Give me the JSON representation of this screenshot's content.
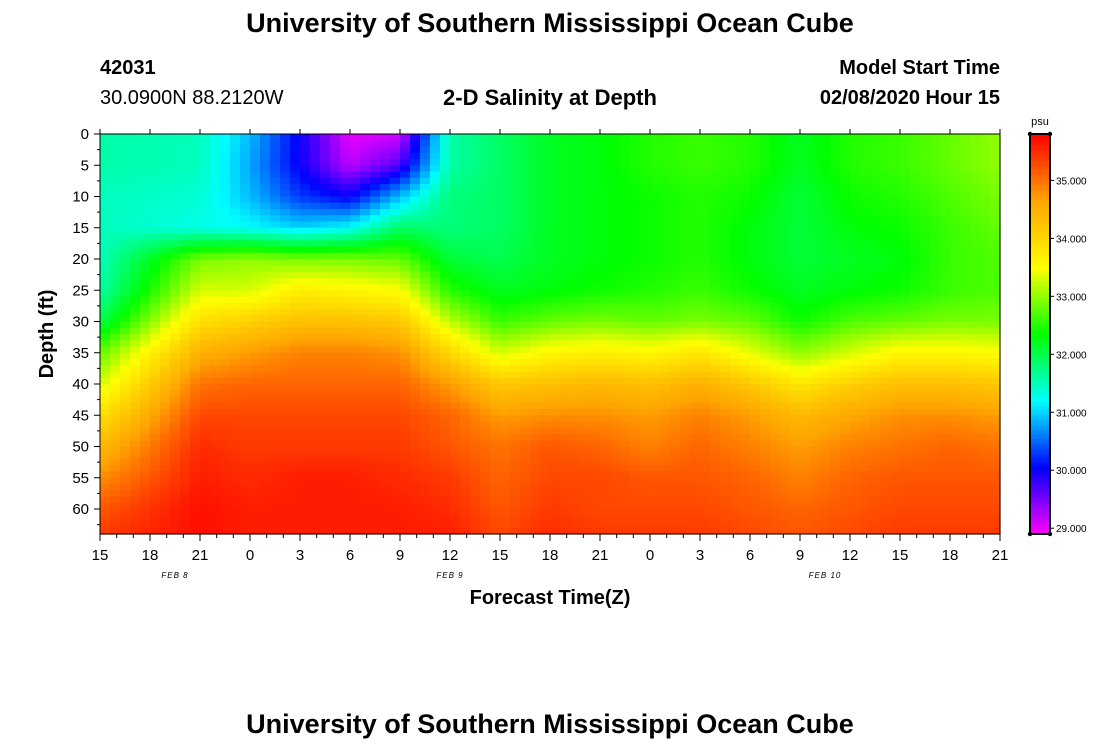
{
  "page": {
    "title_top": "University of Southern Mississippi Ocean Cube",
    "title_bottom": "University of Southern Mississippi Ocean Cube",
    "station_id": "42031",
    "station_coords": "30.0900N 88.2120W",
    "plot_title": "2-D Salinity at Depth",
    "model_label": "Model Start Time",
    "model_time": "02/08/2020 Hour 15"
  },
  "chart_data": {
    "type": "heatmap",
    "title": "2-D Salinity at Depth",
    "xlabel": "Forecast Time(Z)",
    "ylabel": "Depth (ft)",
    "xlim": [
      0,
      54
    ],
    "ylim": [
      0,
      64
    ],
    "x_ticks": [
      {
        "h": 0,
        "label": "15"
      },
      {
        "h": 3,
        "label": "18"
      },
      {
        "h": 6,
        "label": "21"
      },
      {
        "h": 9,
        "label": "0"
      },
      {
        "h": 12,
        "label": "3"
      },
      {
        "h": 15,
        "label": "6"
      },
      {
        "h": 18,
        "label": "9"
      },
      {
        "h": 21,
        "label": "12"
      },
      {
        "h": 24,
        "label": "15"
      },
      {
        "h": 27,
        "label": "18"
      },
      {
        "h": 30,
        "label": "21"
      },
      {
        "h": 33,
        "label": "0"
      },
      {
        "h": 36,
        "label": "3"
      },
      {
        "h": 39,
        "label": "6"
      },
      {
        "h": 42,
        "label": "9"
      },
      {
        "h": 45,
        "label": "12"
      },
      {
        "h": 48,
        "label": "15"
      },
      {
        "h": 51,
        "label": "18"
      },
      {
        "h": 54,
        "label": "21"
      }
    ],
    "date_labels": [
      {
        "h": 4.5,
        "label": "FEB 8"
      },
      {
        "h": 21,
        "label": "FEB 9"
      },
      {
        "h": 43.5,
        "label": "FEB 10"
      }
    ],
    "y_ticks": [
      0,
      5,
      10,
      15,
      20,
      25,
      30,
      35,
      40,
      45,
      50,
      55,
      60
    ],
    "colorbar": {
      "label": "psu",
      "range": [
        28.9,
        35.8
      ],
      "ticks": [
        "29.000",
        "30.000",
        "31.000",
        "32.000",
        "33.000",
        "34.000",
        "35.000"
      ],
      "tick_values": [
        29,
        30,
        31,
        32,
        33,
        34,
        35
      ]
    },
    "colormap": [
      "#ff00ff",
      "#0000ff",
      "#00ffff",
      "#00ff00",
      "#ffff00",
      "#ffa500",
      "#ff0000"
    ],
    "hours": [
      0,
      6,
      9,
      12,
      15,
      18,
      21,
      24,
      27,
      30,
      33,
      36,
      39,
      42,
      45,
      48,
      51,
      54
    ],
    "depths": [
      0,
      5,
      10,
      15,
      20,
      25,
      30,
      35,
      40,
      45,
      50,
      55,
      60,
      64
    ],
    "values": [
      [
        31.6,
        31.6,
        31.5,
        31.5,
        31.5,
        31.6,
        32.0,
        32.8,
        33.3,
        33.9,
        34.4,
        34.8,
        35.2,
        35.4
      ],
      [
        31.5,
        31.5,
        31.4,
        31.3,
        32.9,
        33.3,
        33.9,
        34.5,
        35.0,
        35.3,
        35.5,
        35.6,
        35.7,
        35.7
      ],
      [
        30.9,
        30.8,
        30.9,
        31.2,
        33.0,
        33.3,
        34.1,
        34.7,
        35.1,
        35.3,
        35.4,
        35.5,
        35.6,
        35.6
      ],
      [
        30.0,
        30.0,
        30.3,
        31.0,
        32.9,
        33.7,
        34.3,
        34.9,
        35.1,
        35.3,
        35.4,
        35.6,
        35.6,
        35.6
      ],
      [
        29.0,
        29.2,
        30.0,
        31.2,
        32.9,
        33.6,
        34.3,
        34.9,
        35.1,
        35.3,
        35.4,
        35.6,
        35.6,
        35.6
      ],
      [
        29.1,
        29.7,
        30.9,
        31.9,
        32.8,
        33.5,
        34.2,
        34.8,
        35.1,
        35.3,
        35.4,
        35.5,
        35.6,
        35.6
      ],
      [
        31.6,
        31.6,
        31.8,
        31.8,
        32.1,
        32.5,
        33.2,
        34.0,
        34.7,
        35.1,
        35.2,
        35.4,
        35.5,
        35.6
      ],
      [
        31.9,
        31.9,
        31.9,
        31.9,
        32.0,
        32.2,
        32.6,
        33.3,
        34.2,
        34.7,
        35.0,
        35.1,
        35.2,
        35.3
      ],
      [
        32.2,
        32.2,
        32.2,
        32.2,
        32.2,
        32.3,
        32.8,
        33.6,
        34.3,
        34.8,
        35.2,
        35.3,
        35.4,
        35.5
      ],
      [
        32.3,
        32.3,
        32.3,
        32.3,
        32.3,
        32.4,
        32.9,
        33.7,
        34.4,
        34.8,
        35.1,
        35.3,
        35.3,
        35.4
      ],
      [
        32.5,
        32.5,
        32.4,
        32.4,
        32.4,
        32.5,
        32.8,
        33.6,
        34.3,
        34.7,
        34.9,
        35.2,
        35.3,
        35.4
      ],
      [
        32.6,
        32.6,
        32.5,
        32.5,
        32.5,
        32.6,
        32.9,
        33.8,
        34.5,
        34.9,
        35.1,
        35.2,
        35.3,
        35.4
      ],
      [
        32.5,
        32.5,
        32.4,
        32.3,
        32.3,
        32.4,
        32.8,
        33.4,
        34.2,
        34.7,
        34.9,
        35.1,
        35.2,
        35.3
      ],
      [
        32.2,
        32.2,
        32.1,
        32.1,
        32.1,
        32.2,
        32.4,
        33.0,
        33.8,
        34.4,
        34.7,
        34.9,
        35.1,
        35.2
      ],
      [
        32.5,
        32.5,
        32.4,
        32.3,
        32.2,
        32.3,
        32.7,
        33.3,
        34.1,
        34.6,
        34.9,
        35.1,
        35.2,
        35.3
      ],
      [
        32.6,
        32.6,
        32.5,
        32.4,
        32.3,
        32.4,
        32.8,
        33.6,
        34.3,
        34.8,
        35.0,
        35.2,
        35.3,
        35.4
      ],
      [
        32.8,
        32.8,
        32.7,
        32.6,
        32.6,
        32.6,
        32.9,
        33.6,
        34.3,
        34.8,
        35.1,
        35.2,
        35.3,
        35.4
      ],
      [
        33.0,
        33.0,
        32.9,
        32.8,
        32.7,
        32.7,
        32.9,
        33.5,
        34.2,
        34.7,
        35.0,
        35.2,
        35.3,
        35.4
      ]
    ]
  }
}
